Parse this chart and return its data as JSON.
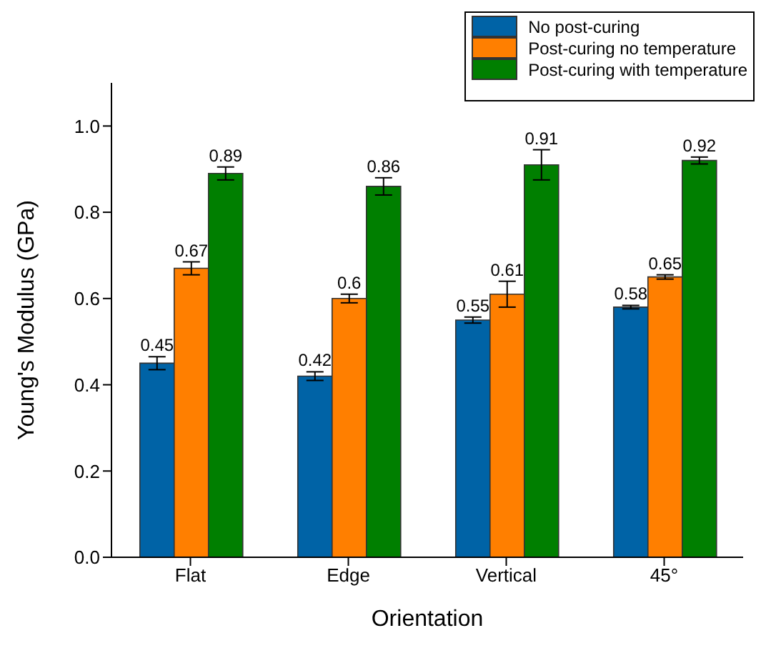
{
  "chart_data": {
    "type": "bar",
    "xlabel": "Orientation",
    "ylabel": "Young's Modulus (GPa)",
    "categories": [
      "Flat",
      "Edge",
      "Vertical",
      "45°"
    ],
    "series": [
      {
        "name": "No post-curing",
        "color": "#0063a6",
        "values": [
          0.45,
          0.42,
          0.55,
          0.58
        ],
        "errors": [
          0.015,
          0.01,
          0.007,
          0.004
        ]
      },
      {
        "name": "Post-curing no temperature",
        "color": "#ff7f00",
        "values": [
          0.67,
          0.6,
          0.61,
          0.65
        ],
        "errors": [
          0.015,
          0.01,
          0.03,
          0.005
        ]
      },
      {
        "name": "Post-curing with temperature",
        "color": "#007f00",
        "values": [
          0.89,
          0.86,
          0.91,
          0.92
        ],
        "errors": [
          0.015,
          0.02,
          0.035,
          0.008
        ]
      }
    ],
    "ylim": [
      0,
      1.1
    ],
    "yticks": [
      {
        "value": 0,
        "label": "0.0"
      },
      {
        "value": 0.2,
        "label": "0.2"
      },
      {
        "value": 0.4,
        "label": "0.4"
      },
      {
        "value": 0.6,
        "label": "0.6"
      },
      {
        "value": 0.8,
        "label": "0.8"
      },
      {
        "value": 1,
        "label": "1.0"
      }
    ],
    "data_labels": true,
    "legend": "top right",
    "grid": false
  }
}
